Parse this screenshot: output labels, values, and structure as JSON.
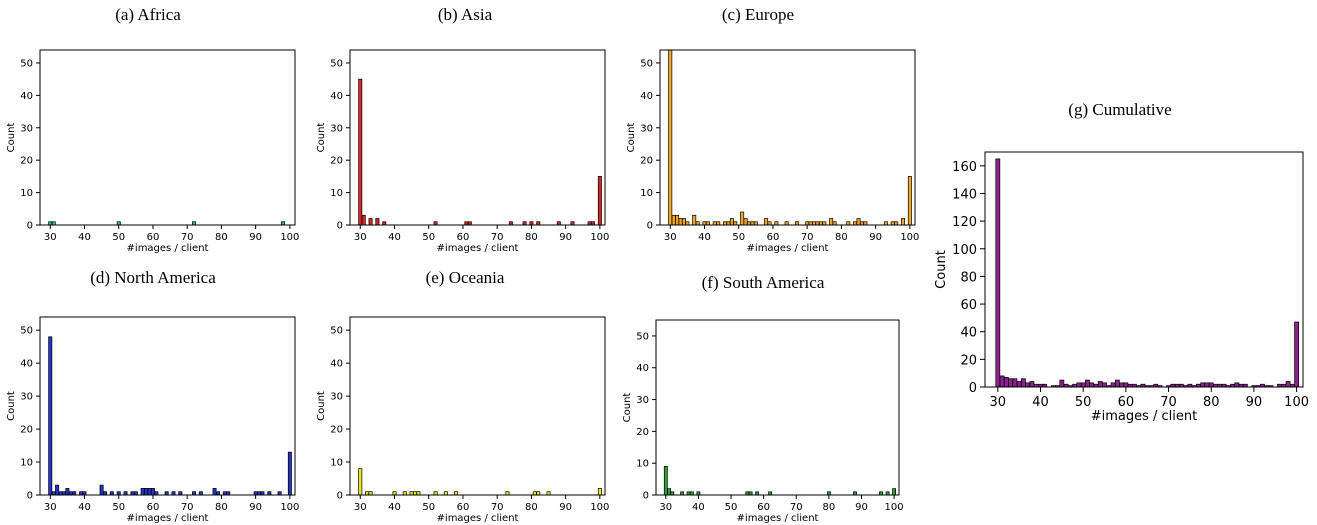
{
  "chart_data": [
    {
      "id": "africa",
      "type": "bar",
      "title": "(a) Africa",
      "xlabel": "#images / client",
      "ylabel": "Count",
      "xlim": [
        27,
        101.5
      ],
      "ylim": [
        0,
        54
      ],
      "xticks": [
        30,
        40,
        50,
        60,
        70,
        80,
        90,
        100
      ],
      "yticks": [
        0,
        10,
        20,
        30,
        40,
        50
      ],
      "color": "#1abc9c",
      "x": [
        30,
        31,
        50,
        72,
        98
      ],
      "values": [
        1,
        1,
        1,
        1,
        1
      ]
    },
    {
      "id": "asia",
      "type": "bar",
      "title": "(b) Asia",
      "xlabel": "#images / client",
      "ylabel": "Count",
      "xlim": [
        27,
        101.5
      ],
      "ylim": [
        0,
        54
      ],
      "xticks": [
        30,
        40,
        50,
        60,
        70,
        80,
        90,
        100
      ],
      "yticks": [
        0,
        10,
        20,
        30,
        40,
        50
      ],
      "color": "#d62728",
      "x": [
        30,
        31,
        33,
        35,
        37,
        52,
        61,
        62,
        74,
        78,
        80,
        82,
        88,
        92,
        97,
        98,
        100
      ],
      "values": [
        45,
        3,
        2,
        2,
        1,
        1,
        1,
        1,
        1,
        1,
        1,
        1,
        1,
        1,
        1,
        1,
        15
      ]
    },
    {
      "id": "europe",
      "type": "bar",
      "title": "(c) Europe",
      "xlabel": "#images / client",
      "ylabel": "Count",
      "xlim": [
        27,
        101.5
      ],
      "ylim": [
        0,
        54
      ],
      "xticks": [
        30,
        40,
        50,
        60,
        70,
        80,
        90,
        100
      ],
      "yticks": [
        0,
        10,
        20,
        30,
        40,
        50
      ],
      "color": "#f5a623",
      "x": [
        30,
        31,
        32,
        33,
        34,
        35,
        37,
        38,
        40,
        41,
        43,
        44,
        46,
        47,
        48,
        49,
        51,
        52,
        53,
        54,
        55,
        58,
        59,
        61,
        64,
        67,
        70,
        71,
        72,
        73,
        74,
        75,
        77,
        78,
        82,
        84,
        85,
        86,
        87,
        93,
        95,
        96,
        98,
        100
      ],
      "values": [
        54,
        3,
        3,
        2,
        2,
        1,
        3,
        1,
        1,
        1,
        1,
        1,
        1,
        1,
        2,
        1,
        4,
        2,
        1,
        1,
        1,
        2,
        1,
        1,
        1,
        1,
        1,
        1,
        1,
        1,
        1,
        1,
        2,
        1,
        1,
        1,
        2,
        1,
        1,
        1,
        1,
        1,
        2,
        15
      ]
    },
    {
      "id": "north-america",
      "type": "bar",
      "title": "(d) North America",
      "xlabel": "#images / client",
      "ylabel": "Count",
      "xlim": [
        27,
        101.5
      ],
      "ylim": [
        0,
        54
      ],
      "xticks": [
        30,
        40,
        50,
        60,
        70,
        80,
        90,
        100
      ],
      "yticks": [
        0,
        10,
        20,
        30,
        40,
        50
      ],
      "color": "#2433c8",
      "x": [
        30,
        31,
        32,
        33,
        34,
        35,
        36,
        37,
        39,
        40,
        45,
        46,
        48,
        50,
        52,
        54,
        55,
        57,
        58,
        59,
        60,
        61,
        64,
        66,
        68,
        72,
        74,
        78,
        79,
        81,
        82,
        90,
        91,
        92,
        94,
        97,
        100
      ],
      "values": [
        48,
        1,
        3,
        1,
        1,
        2,
        1,
        1,
        1,
        1,
        3,
        1,
        1,
        1,
        1,
        1,
        1,
        2,
        2,
        2,
        2,
        1,
        1,
        1,
        1,
        1,
        1,
        2,
        1,
        1,
        1,
        1,
        1,
        1,
        1,
        1,
        13
      ]
    },
    {
      "id": "oceania",
      "type": "bar",
      "title": "(e) Oceania",
      "xlabel": "#images / client",
      "ylabel": "Count",
      "xlim": [
        27,
        101.5
      ],
      "ylim": [
        0,
        54
      ],
      "xticks": [
        30,
        40,
        50,
        60,
        70,
        80,
        90,
        100
      ],
      "yticks": [
        0,
        10,
        20,
        30,
        40,
        50
      ],
      "color": "#e8e81a",
      "x": [
        30,
        32,
        33,
        40,
        43,
        45,
        46,
        47,
        52,
        55,
        58,
        73,
        81,
        82,
        85,
        100
      ],
      "values": [
        8,
        1,
        1,
        1,
        1,
        1,
        1,
        1,
        1,
        1,
        1,
        1,
        1,
        1,
        1,
        2
      ]
    },
    {
      "id": "south-america",
      "type": "bar",
      "title": "(f) South America",
      "xlabel": "#images / client",
      "ylabel": "Count",
      "xlim": [
        27,
        101.5
      ],
      "ylim": [
        0,
        55
      ],
      "xticks": [
        30,
        40,
        50,
        60,
        70,
        80,
        90,
        100
      ],
      "yticks": [
        0,
        10,
        20,
        30,
        40,
        50
      ],
      "color": "#2ca02c",
      "x": [
        30,
        31,
        32,
        35,
        37,
        38,
        40,
        55,
        56,
        58,
        62,
        80,
        88,
        96,
        98,
        100
      ],
      "values": [
        9,
        2,
        1,
        1,
        1,
        1,
        1,
        1,
        1,
        1,
        1,
        1,
        1,
        1,
        1,
        2
      ]
    },
    {
      "id": "cumulative",
      "type": "bar",
      "title": "(g) Cumulative",
      "xlabel": "#images / client",
      "ylabel": "Count",
      "xlim": [
        27,
        101.5
      ],
      "ylim": [
        0,
        170
      ],
      "xticks": [
        30,
        40,
        50,
        60,
        70,
        80,
        90,
        100
      ],
      "yticks": [
        0,
        20,
        40,
        60,
        80,
        100,
        120,
        140,
        160
      ],
      "color": "#8e1f8e",
      "x": [
        30,
        31,
        32,
        33,
        34,
        35,
        36,
        37,
        38,
        39,
        40,
        41,
        43,
        44,
        45,
        46,
        47,
        48,
        49,
        50,
        51,
        52,
        53,
        54,
        55,
        56,
        57,
        58,
        59,
        60,
        61,
        62,
        63,
        64,
        65,
        66,
        67,
        68,
        70,
        71,
        72,
        73,
        74,
        75,
        76,
        77,
        78,
        79,
        80,
        81,
        82,
        83,
        84,
        85,
        86,
        87,
        88,
        90,
        91,
        92,
        93,
        94,
        96,
        97,
        98,
        99,
        100
      ],
      "values": [
        165,
        8,
        7,
        6,
        6,
        4,
        6,
        3,
        4,
        2,
        2,
        2,
        1,
        1,
        5,
        2,
        1,
        2,
        3,
        3,
        5,
        3,
        2,
        4,
        3,
        1,
        3,
        5,
        3,
        3,
        2,
        2,
        1,
        2,
        1,
        1,
        2,
        1,
        1,
        2,
        2,
        2,
        1,
        2,
        1,
        2,
        3,
        3,
        3,
        2,
        2,
        2,
        1,
        2,
        3,
        2,
        2,
        1,
        1,
        2,
        1,
        1,
        2,
        2,
        4,
        2,
        47
      ]
    }
  ]
}
